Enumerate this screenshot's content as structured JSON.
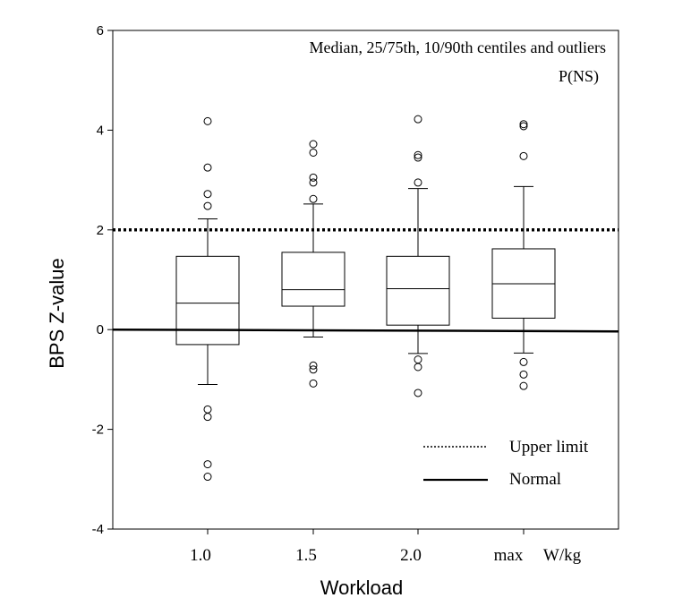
{
  "chart_data": {
    "type": "box",
    "annotation": "Median, 25/75th, 10/90th centiles and outliers",
    "significance": "P(NS)",
    "xlabel": "Workload",
    "ylabel": "BPS Z-value",
    "x_unit_label": "W/kg",
    "ylim": [
      -4,
      6
    ],
    "yticks": [
      -4,
      -2,
      0,
      2,
      4,
      6
    ],
    "categories": [
      "1.0",
      "1.5",
      "2.0",
      "max"
    ],
    "boxes": [
      {
        "category": "1.0",
        "p10": -1.1,
        "q1": -0.3,
        "median": 0.53,
        "q3": 1.47,
        "p90": 2.22,
        "outliers": [
          4.18,
          3.25,
          2.72,
          2.48,
          -1.6,
          -1.75,
          -2.7,
          -2.95
        ]
      },
      {
        "category": "1.5",
        "p10": -0.15,
        "q1": 0.47,
        "median": 0.8,
        "q3": 1.55,
        "p90": 2.52,
        "outliers": [
          3.72,
          3.55,
          3.05,
          2.95,
          2.62,
          -0.72,
          -0.8,
          -1.08
        ]
      },
      {
        "category": "2.0",
        "p10": -0.48,
        "q1": 0.09,
        "median": 0.82,
        "q3": 1.47,
        "p90": 2.83,
        "outliers": [
          4.22,
          3.5,
          3.45,
          2.95,
          -0.6,
          -0.75,
          -1.27
        ]
      },
      {
        "category": "max",
        "p10": -0.47,
        "q1": 0.23,
        "median": 0.92,
        "q3": 1.62,
        "p90": 2.87,
        "outliers": [
          4.12,
          4.08,
          3.48,
          -0.65,
          -0.9,
          -1.13
        ]
      }
    ],
    "reference_lines": [
      {
        "name": "Upper limit",
        "y": 2,
        "style": "dotted"
      },
      {
        "name": "Normal",
        "y": 0,
        "style": "solid"
      }
    ],
    "legend": {
      "placement": "bottom-right",
      "entries": [
        "Upper limit",
        "Normal"
      ]
    }
  }
}
